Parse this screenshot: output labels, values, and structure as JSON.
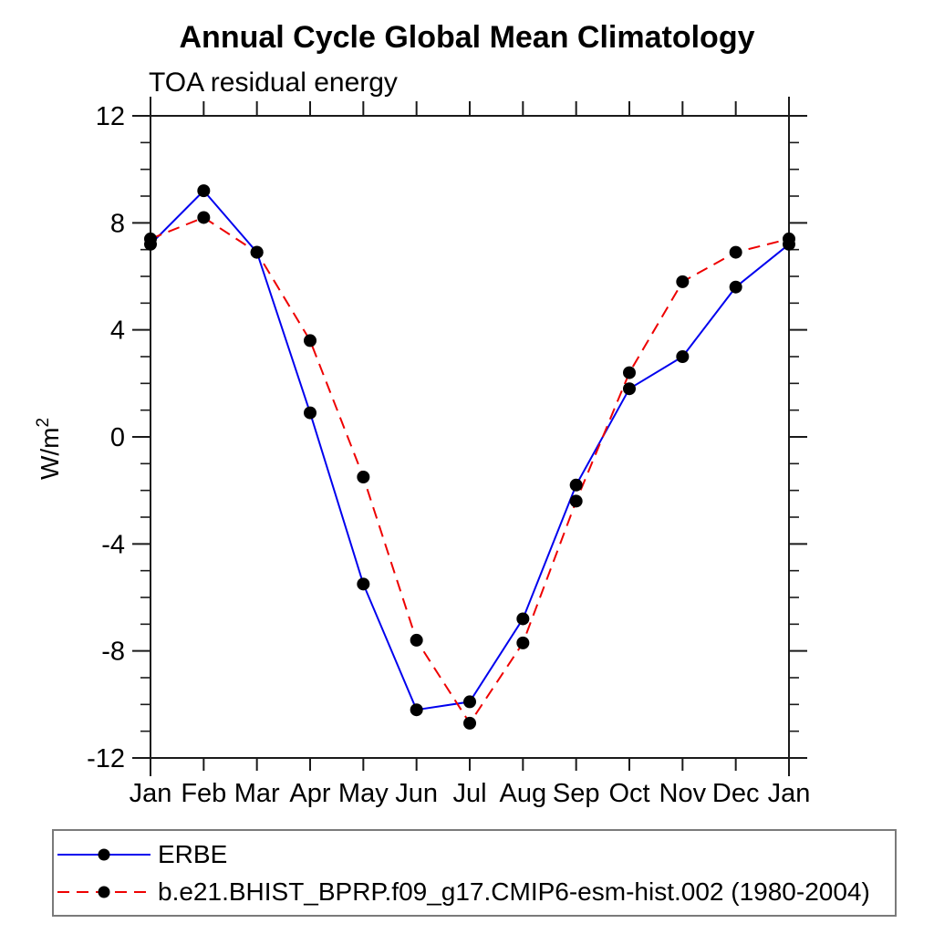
{
  "title": "Annual Cycle Global Mean Climatology",
  "subtitle": "TOA residual energy",
  "y_axis": {
    "label_base": "W/m",
    "label_exponent": "2",
    "min": -12,
    "max": 12,
    "major_step": 4,
    "minor_step": 1,
    "major_tick_labels": [
      "12",
      "8",
      "4",
      "0",
      "-4",
      "-8",
      "-12"
    ]
  },
  "x_axis": {
    "labels": [
      "Jan",
      "Feb",
      "Mar",
      "Apr",
      "May",
      "Jun",
      "Jul",
      "Aug",
      "Sep",
      "Oct",
      "Nov",
      "Dec",
      "Jan"
    ]
  },
  "colors": {
    "erbe_line": "#0000ee",
    "model_line": "#ee0000",
    "marker": "#000000",
    "axis": "#1a1a1a",
    "text": "#000000",
    "legend_border": "#7a7a7a",
    "background": "#ffffff"
  },
  "legend": {
    "items": [
      {
        "label": "ERBE",
        "color": "#0000ee",
        "line_style": "solid",
        "marker": "filled-circle",
        "marker_color": "#000000"
      },
      {
        "label": "b.e21.BHIST_BPRP.f09_g17.CMIP6-esm-hist.002 (1980-2004)",
        "color": "#ee0000",
        "line_style": "dashed",
        "marker": "filled-circle",
        "marker_color": "#000000"
      }
    ]
  },
  "chart_data": {
    "type": "line",
    "title": "Annual Cycle Global Mean Climatology",
    "subtitle": "TOA residual energy",
    "ylabel": "W/m^2",
    "xlabel": "",
    "ylim": [
      -12,
      12
    ],
    "y_major_step": 4,
    "y_minor_step": 1,
    "grid": false,
    "legend_position": "bottom-left-box",
    "x": [
      "Jan",
      "Feb",
      "Mar",
      "Apr",
      "May",
      "Jun",
      "Jul",
      "Aug",
      "Sep",
      "Oct",
      "Nov",
      "Dec",
      "Jan"
    ],
    "series": [
      {
        "name": "ERBE",
        "color": "#0000ee",
        "line_style": "solid",
        "marker": "filled-circle",
        "marker_color": "#000000",
        "values": [
          7.2,
          9.2,
          6.9,
          0.9,
          -5.5,
          -10.2,
          -9.9,
          -6.8,
          -1.8,
          1.8,
          3.0,
          5.6,
          7.2
        ]
      },
      {
        "name": "b.e21.BHIST_BPRP.f09_g17.CMIP6-esm-hist.002 (1980-2004)",
        "color": "#ee0000",
        "line_style": "dashed",
        "marker": "filled-circle",
        "marker_color": "#000000",
        "values": [
          7.4,
          8.2,
          6.9,
          3.6,
          -1.5,
          -7.6,
          -10.7,
          -7.7,
          -2.4,
          2.4,
          5.8,
          6.9,
          7.4
        ]
      }
    ]
  }
}
